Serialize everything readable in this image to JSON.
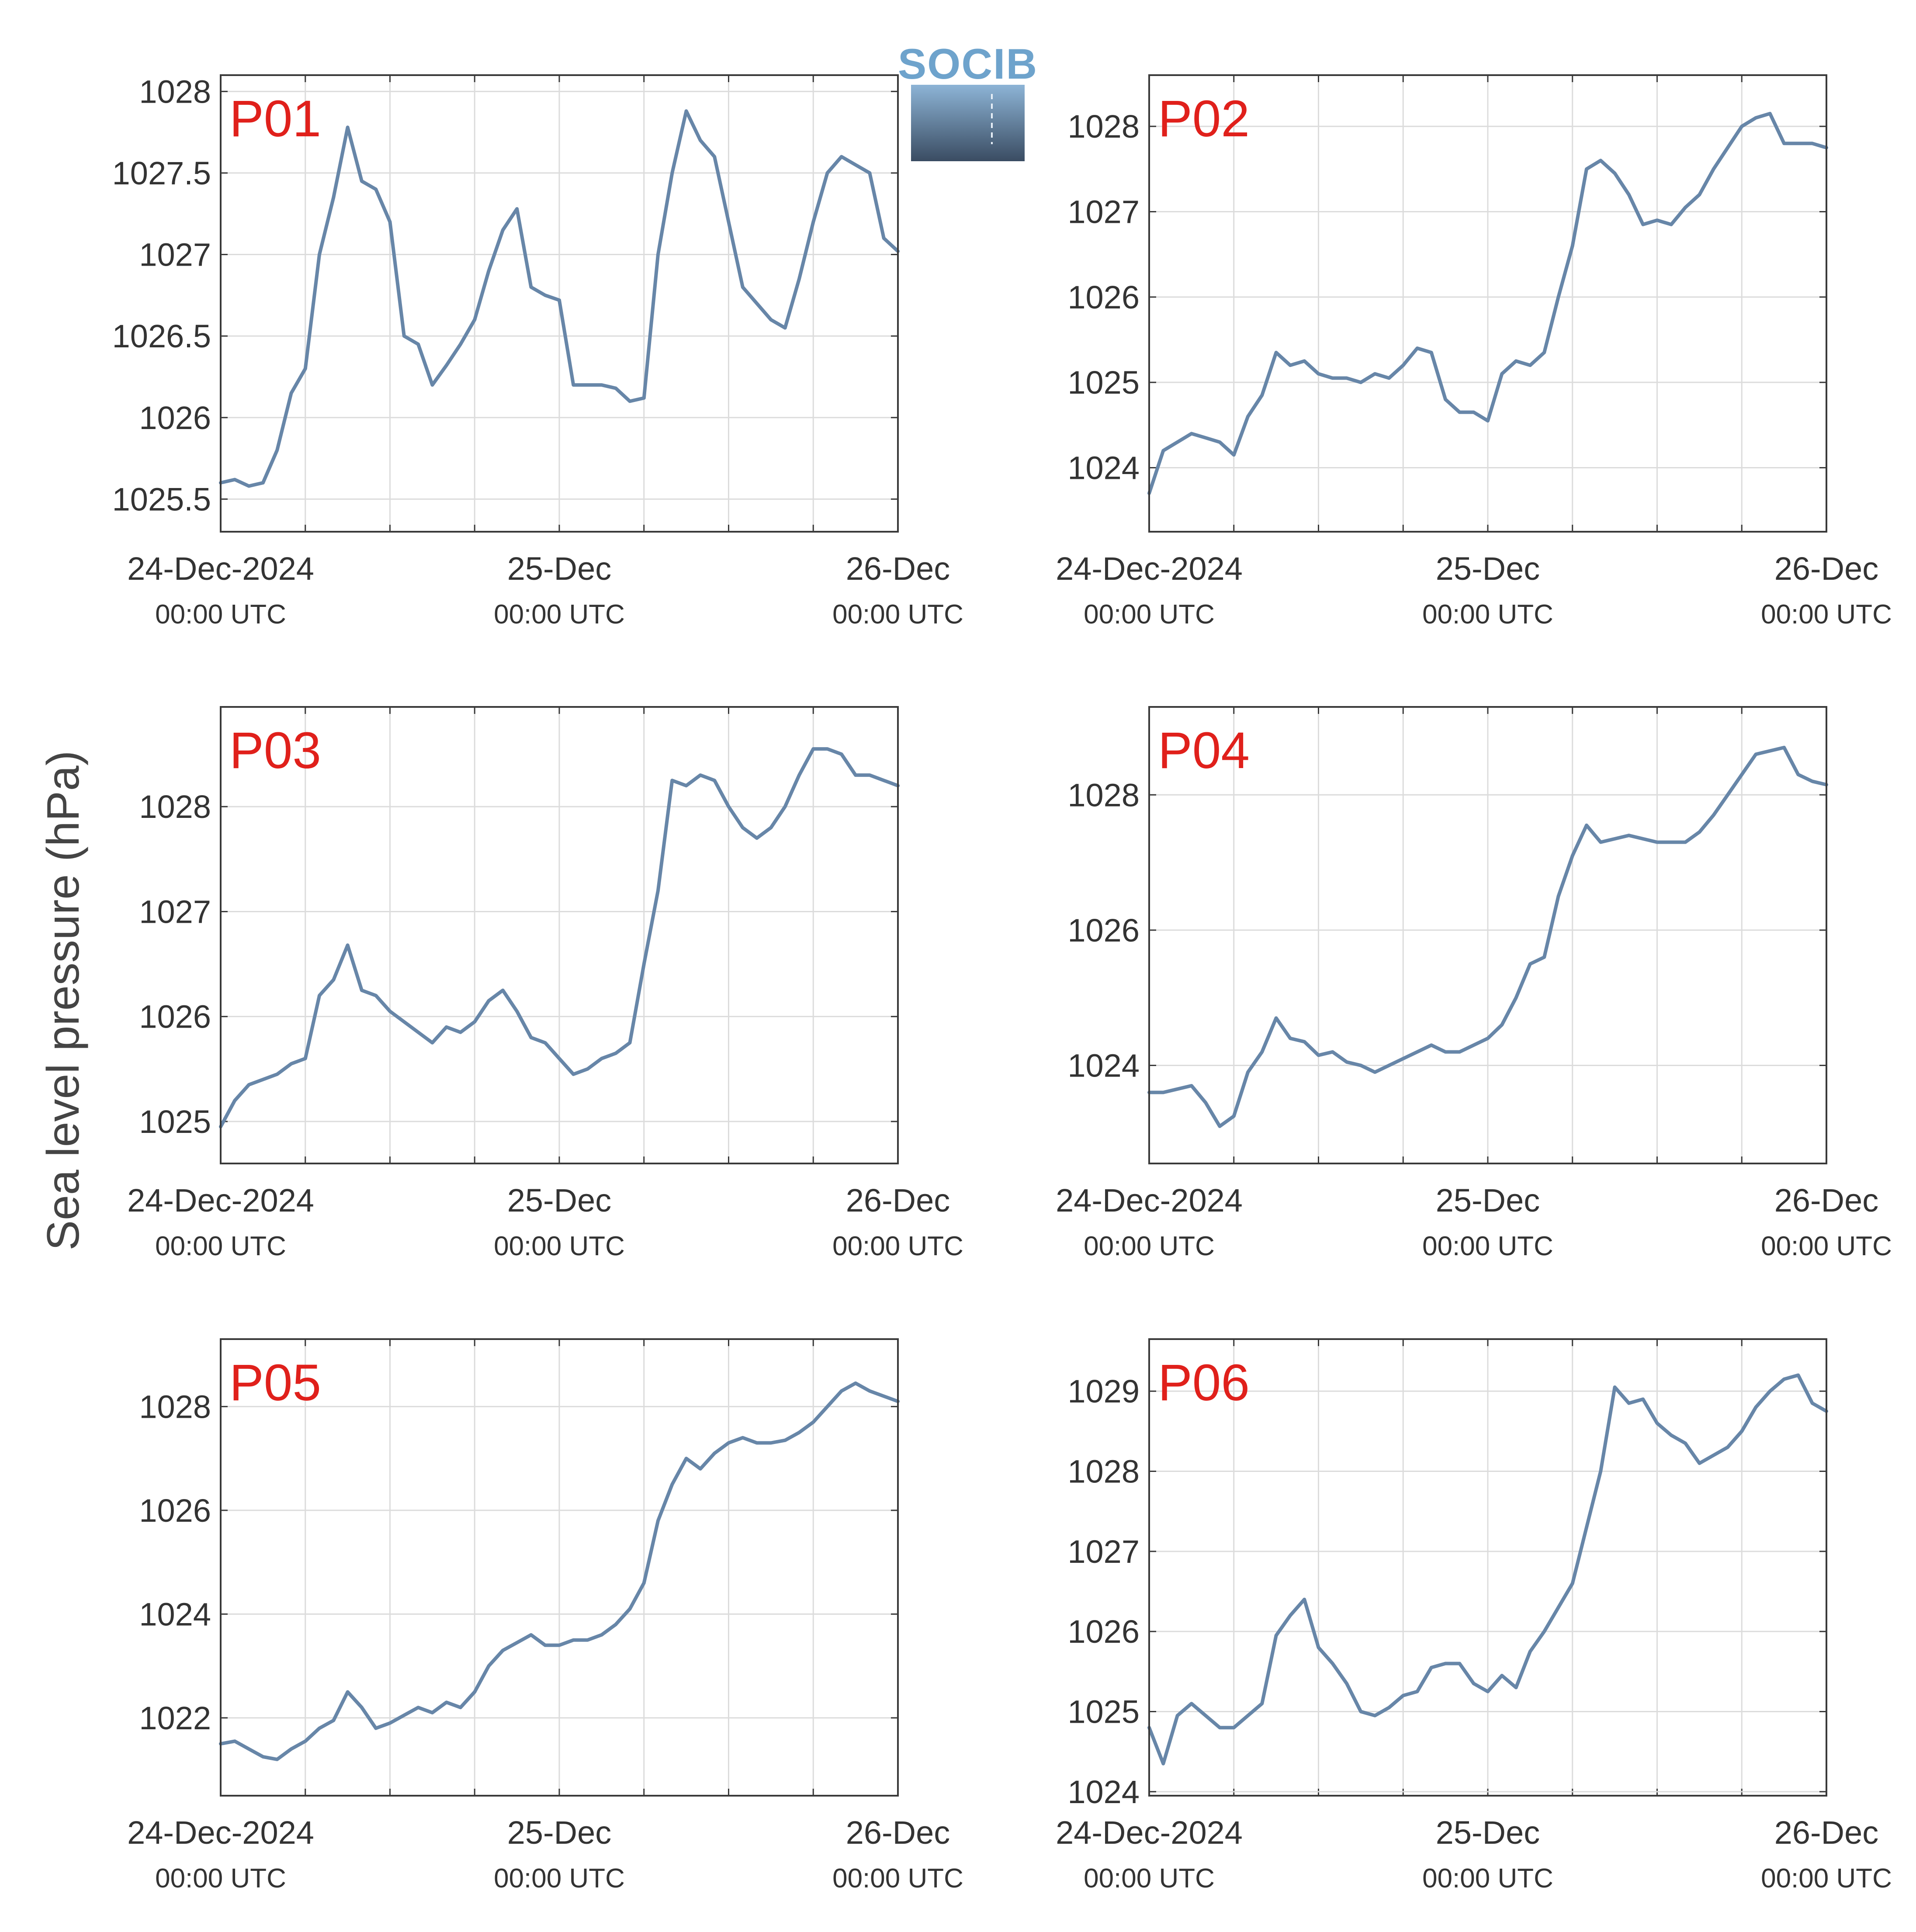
{
  "figure": {
    "ylabel": "Sea level pressure (hPa)",
    "logo_text": "SOCIB"
  },
  "colors": {
    "line": "#6786a8",
    "panel_label": "#e0201b",
    "axis": "#3a3a3a",
    "grid": "#dcdcdc",
    "text": "#333333",
    "logo_top": "#7aa8cc",
    "logo_bottom": "#3a4c62"
  },
  "x_ticks": [
    {
      "main": "24-Dec-2024",
      "sub": "00:00 UTC",
      "hours": 0
    },
    {
      "main": "25-Dec",
      "sub": "00:00 UTC",
      "hours": 24
    },
    {
      "main": "26-Dec",
      "sub": "00:00 UTC",
      "hours": 48
    }
  ],
  "chart_data": [
    {
      "type": "line",
      "label": "P01",
      "x_unit": "hours since 24-Dec-2024 00:00 UTC",
      "xlim": [
        0,
        48
      ],
      "ylim": [
        1025.3,
        1028.1
      ],
      "yticks": [
        1025.5,
        1026,
        1026.5,
        1027,
        1027.5,
        1028
      ],
      "ytick_labels": [
        "1025.5",
        "1026",
        "1026.5",
        "1027",
        "1027.5",
        "1028"
      ],
      "x": [
        0,
        1,
        2,
        3,
        4,
        5,
        6,
        7,
        8,
        9,
        10,
        11,
        12,
        13,
        14,
        15,
        16,
        17,
        18,
        19,
        20,
        21,
        22,
        23,
        24,
        25,
        26,
        27,
        28,
        29,
        30,
        31,
        32,
        33,
        34,
        35,
        36,
        37,
        38,
        39,
        40,
        41,
        42,
        43,
        44,
        45,
        46,
        47,
        48
      ],
      "y": [
        1025.6,
        1025.62,
        1025.58,
        1025.6,
        1025.8,
        1026.15,
        1026.3,
        1027.0,
        1027.35,
        1027.78,
        1027.45,
        1027.4,
        1027.2,
        1026.5,
        1026.45,
        1026.2,
        1026.32,
        1026.45,
        1026.6,
        1026.9,
        1027.15,
        1027.28,
        1026.8,
        1026.75,
        1026.72,
        1026.2,
        1026.2,
        1026.2,
        1026.18,
        1026.1,
        1026.12,
        1027.0,
        1027.5,
        1027.88,
        1027.7,
        1027.6,
        1027.2,
        1026.8,
        1026.7,
        1026.6,
        1026.55,
        1026.85,
        1027.2,
        1027.5,
        1027.6,
        1027.55,
        1027.5,
        1027.1,
        1027.02
      ]
    },
    {
      "type": "line",
      "label": "P02",
      "x_unit": "hours since 24-Dec-2024 00:00 UTC",
      "xlim": [
        0,
        48
      ],
      "ylim": [
        1023.25,
        1028.6
      ],
      "yticks": [
        1024,
        1025,
        1026,
        1027,
        1028
      ],
      "ytick_labels": [
        "1024",
        "1025",
        "1026",
        "1027",
        "1028"
      ],
      "x": [
        0,
        1,
        2,
        3,
        4,
        5,
        6,
        7,
        8,
        9,
        10,
        11,
        12,
        13,
        14,
        15,
        16,
        17,
        18,
        19,
        20,
        21,
        22,
        23,
        24,
        25,
        26,
        27,
        28,
        29,
        30,
        31,
        32,
        33,
        34,
        35,
        36,
        37,
        38,
        39,
        40,
        41,
        42,
        43,
        44,
        45,
        46,
        47,
        48
      ],
      "y": [
        1023.7,
        1024.2,
        1024.3,
        1024.4,
        1024.35,
        1024.3,
        1024.15,
        1024.6,
        1024.85,
        1025.35,
        1025.2,
        1025.25,
        1025.1,
        1025.05,
        1025.05,
        1025.0,
        1025.1,
        1025.05,
        1025.2,
        1025.4,
        1025.35,
        1024.8,
        1024.65,
        1024.65,
        1024.55,
        1025.1,
        1025.25,
        1025.2,
        1025.35,
        1026.0,
        1026.6,
        1027.5,
        1027.6,
        1027.45,
        1027.2,
        1026.85,
        1026.9,
        1026.85,
        1027.05,
        1027.2,
        1027.5,
        1027.75,
        1028.0,
        1028.1,
        1028.15,
        1027.8,
        1027.8,
        1027.8,
        1027.75
      ]
    },
    {
      "type": "line",
      "label": "P03",
      "x_unit": "hours since 24-Dec-2024 00:00 UTC",
      "xlim": [
        0,
        48
      ],
      "ylim": [
        1024.6,
        1028.95
      ],
      "yticks": [
        1025,
        1026,
        1027,
        1028
      ],
      "ytick_labels": [
        "1025",
        "1026",
        "1027",
        "1028"
      ],
      "x": [
        0,
        1,
        2,
        3,
        4,
        5,
        6,
        7,
        8,
        9,
        10,
        11,
        12,
        13,
        14,
        15,
        16,
        17,
        18,
        19,
        20,
        21,
        22,
        23,
        24,
        25,
        26,
        27,
        28,
        29,
        30,
        31,
        32,
        33,
        34,
        35,
        36,
        37,
        38,
        39,
        40,
        41,
        42,
        43,
        44,
        45,
        46,
        47,
        48
      ],
      "y": [
        1024.95,
        1025.2,
        1025.35,
        1025.4,
        1025.45,
        1025.55,
        1025.6,
        1026.2,
        1026.35,
        1026.68,
        1026.25,
        1026.2,
        1026.05,
        1025.95,
        1025.85,
        1025.75,
        1025.9,
        1025.85,
        1025.95,
        1026.15,
        1026.25,
        1026.05,
        1025.8,
        1025.75,
        1025.6,
        1025.45,
        1025.5,
        1025.6,
        1025.65,
        1025.75,
        1026.5,
        1027.2,
        1028.25,
        1028.2,
        1028.3,
        1028.25,
        1028.0,
        1027.8,
        1027.7,
        1027.8,
        1028.0,
        1028.3,
        1028.55,
        1028.55,
        1028.5,
        1028.3,
        1028.3,
        1028.25,
        1028.2
      ]
    },
    {
      "type": "line",
      "label": "P04",
      "x_unit": "hours since 24-Dec-2024 00:00 UTC",
      "xlim": [
        0,
        48
      ],
      "ylim": [
        1022.55,
        1029.3
      ],
      "yticks": [
        1024,
        1026,
        1028
      ],
      "ytick_labels": [
        "1024",
        "1026",
        "1028"
      ],
      "x": [
        0,
        1,
        2,
        3,
        4,
        5,
        6,
        7,
        8,
        9,
        10,
        11,
        12,
        13,
        14,
        15,
        16,
        17,
        18,
        19,
        20,
        21,
        22,
        23,
        24,
        25,
        26,
        27,
        28,
        29,
        30,
        31,
        32,
        33,
        34,
        35,
        36,
        37,
        38,
        39,
        40,
        41,
        42,
        43,
        44,
        45,
        46,
        47,
        48
      ],
      "y": [
        1023.6,
        1023.6,
        1023.65,
        1023.7,
        1023.45,
        1023.1,
        1023.25,
        1023.9,
        1024.2,
        1024.7,
        1024.4,
        1024.35,
        1024.15,
        1024.2,
        1024.05,
        1024.0,
        1023.9,
        1024.0,
        1024.1,
        1024.2,
        1024.3,
        1024.2,
        1024.2,
        1024.3,
        1024.4,
        1024.6,
        1025.0,
        1025.5,
        1025.6,
        1026.5,
        1027.1,
        1027.55,
        1027.3,
        1027.35,
        1027.4,
        1027.35,
        1027.3,
        1027.3,
        1027.3,
        1027.45,
        1027.7,
        1028.0,
        1028.3,
        1028.6,
        1028.65,
        1028.7,
        1028.3,
        1028.2,
        1028.15
      ]
    },
    {
      "type": "line",
      "label": "P05",
      "x_unit": "hours since 24-Dec-2024 00:00 UTC",
      "xlim": [
        0,
        48
      ],
      "ylim": [
        1020.5,
        1029.3
      ],
      "yticks": [
        1022,
        1024,
        1026,
        1028
      ],
      "ytick_labels": [
        "1022",
        "1024",
        "1026",
        "1028"
      ],
      "x": [
        0,
        1,
        2,
        3,
        4,
        5,
        6,
        7,
        8,
        9,
        10,
        11,
        12,
        13,
        14,
        15,
        16,
        17,
        18,
        19,
        20,
        21,
        22,
        23,
        24,
        25,
        26,
        27,
        28,
        29,
        30,
        31,
        32,
        33,
        34,
        35,
        36,
        37,
        38,
        39,
        40,
        41,
        42,
        43,
        44,
        45,
        46,
        47,
        48
      ],
      "y": [
        1021.5,
        1021.55,
        1021.4,
        1021.25,
        1021.2,
        1021.4,
        1021.55,
        1021.8,
        1021.95,
        1022.5,
        1022.2,
        1021.8,
        1021.9,
        1022.05,
        1022.2,
        1022.1,
        1022.3,
        1022.2,
        1022.5,
        1023.0,
        1023.3,
        1023.45,
        1023.6,
        1023.4,
        1023.4,
        1023.5,
        1023.5,
        1023.6,
        1023.8,
        1024.1,
        1024.6,
        1025.8,
        1026.5,
        1027.0,
        1026.8,
        1027.1,
        1027.3,
        1027.4,
        1027.3,
        1027.3,
        1027.35,
        1027.5,
        1027.7,
        1028.0,
        1028.3,
        1028.45,
        1028.3,
        1028.2,
        1028.1
      ]
    },
    {
      "type": "line",
      "label": "P06",
      "x_unit": "hours since 24-Dec-2024 00:00 UTC",
      "xlim": [
        0,
        48
      ],
      "ylim": [
        1023.95,
        1029.65
      ],
      "yticks": [
        1024,
        1025,
        1026,
        1027,
        1028,
        1029
      ],
      "ytick_labels": [
        "1024",
        "1025",
        "1026",
        "1027",
        "1028",
        "1029"
      ],
      "x": [
        0,
        1,
        2,
        3,
        4,
        5,
        6,
        7,
        8,
        9,
        10,
        11,
        12,
        13,
        14,
        15,
        16,
        17,
        18,
        19,
        20,
        21,
        22,
        23,
        24,
        25,
        26,
        27,
        28,
        29,
        30,
        31,
        32,
        33,
        34,
        35,
        36,
        37,
        38,
        39,
        40,
        41,
        42,
        43,
        44,
        45,
        46,
        47,
        48
      ],
      "y": [
        1024.8,
        1024.35,
        1024.95,
        1025.1,
        1024.95,
        1024.8,
        1024.8,
        1024.95,
        1025.1,
        1025.95,
        1026.2,
        1026.4,
        1025.8,
        1025.6,
        1025.35,
        1025.0,
        1024.95,
        1025.05,
        1025.2,
        1025.25,
        1025.55,
        1025.6,
        1025.6,
        1025.35,
        1025.25,
        1025.45,
        1025.3,
        1025.75,
        1026.0,
        1026.3,
        1026.6,
        1027.3,
        1028.0,
        1029.05,
        1028.85,
        1028.9,
        1028.6,
        1028.45,
        1028.35,
        1028.1,
        1028.2,
        1028.3,
        1028.5,
        1028.8,
        1029.0,
        1029.15,
        1029.2,
        1028.85,
        1028.75
      ]
    }
  ]
}
